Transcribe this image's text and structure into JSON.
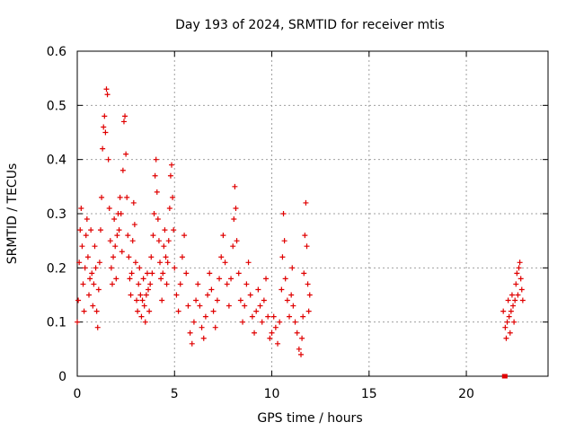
{
  "chart_data": {
    "type": "scatter",
    "title": "Day 193 of 2024, SRMTID for receiver mtis",
    "xlabel": "GPS time / hours",
    "ylabel": "SRMTID / TECUs",
    "xlim": [
      0,
      24.2
    ],
    "ylim": [
      0,
      0.6
    ],
    "x_ticks": [
      "0",
      "5",
      "10",
      "15",
      "20"
    ],
    "y_ticks": [
      "0",
      "0.1",
      "0.2",
      "0.3",
      "0.4",
      "0.5",
      "0.6"
    ],
    "grid": true,
    "marker": "+",
    "series_color": "#e00000",
    "series": [
      {
        "name": "SRMTID",
        "points": [
          [
            0.0,
            0.1
          ],
          [
            0.05,
            0.14
          ],
          [
            0.1,
            0.21
          ],
          [
            0.15,
            0.27
          ],
          [
            0.2,
            0.31
          ],
          [
            0.25,
            0.24
          ],
          [
            0.3,
            0.17
          ],
          [
            0.35,
            0.12
          ],
          [
            0.4,
            0.2
          ],
          [
            0.45,
            0.26
          ],
          [
            0.5,
            0.29
          ],
          [
            0.55,
            0.22
          ],
          [
            0.6,
            0.15
          ],
          [
            0.65,
            0.18
          ],
          [
            0.7,
            0.27
          ],
          [
            0.75,
            0.19
          ],
          [
            0.8,
            0.13
          ],
          [
            0.85,
            0.17
          ],
          [
            0.9,
            0.24
          ],
          [
            0.95,
            0.2
          ],
          [
            1.0,
            0.12
          ],
          [
            1.05,
            0.09
          ],
          [
            1.1,
            0.16
          ],
          [
            1.15,
            0.21
          ],
          [
            1.2,
            0.27
          ],
          [
            1.25,
            0.33
          ],
          [
            1.3,
            0.42
          ],
          [
            1.35,
            0.46
          ],
          [
            1.4,
            0.48
          ],
          [
            1.45,
            0.45
          ],
          [
            1.5,
            0.53
          ],
          [
            1.55,
            0.52
          ],
          [
            1.6,
            0.4
          ],
          [
            1.65,
            0.31
          ],
          [
            1.7,
            0.25
          ],
          [
            1.75,
            0.2
          ],
          [
            1.8,
            0.17
          ],
          [
            1.85,
            0.22
          ],
          [
            1.9,
            0.29
          ],
          [
            1.95,
            0.24
          ],
          [
            2.0,
            0.18
          ],
          [
            2.05,
            0.26
          ],
          [
            2.1,
            0.3
          ],
          [
            2.15,
            0.27
          ],
          [
            2.2,
            0.33
          ],
          [
            2.25,
            0.3
          ],
          [
            2.3,
            0.23
          ],
          [
            2.35,
            0.38
          ],
          [
            2.4,
            0.47
          ],
          [
            2.45,
            0.48
          ],
          [
            2.5,
            0.41
          ],
          [
            2.55,
            0.33
          ],
          [
            2.6,
            0.26
          ],
          [
            2.65,
            0.22
          ],
          [
            2.7,
            0.18
          ],
          [
            2.75,
            0.15
          ],
          [
            2.8,
            0.19
          ],
          [
            2.85,
            0.25
          ],
          [
            2.9,
            0.32
          ],
          [
            2.95,
            0.28
          ],
          [
            3.0,
            0.21
          ],
          [
            3.05,
            0.14
          ],
          [
            3.1,
            0.12
          ],
          [
            3.15,
            0.17
          ],
          [
            3.2,
            0.2
          ],
          [
            3.25,
            0.15
          ],
          [
            3.3,
            0.11
          ],
          [
            3.35,
            0.14
          ],
          [
            3.4,
            0.18
          ],
          [
            3.45,
            0.13
          ],
          [
            3.5,
            0.1
          ],
          [
            3.55,
            0.15
          ],
          [
            3.6,
            0.19
          ],
          [
            3.65,
            0.16
          ],
          [
            3.7,
            0.12
          ],
          [
            3.75,
            0.17
          ],
          [
            3.8,
            0.22
          ],
          [
            3.85,
            0.19
          ],
          [
            3.9,
            0.26
          ],
          [
            3.95,
            0.3
          ],
          [
            4.0,
            0.37
          ],
          [
            4.05,
            0.4
          ],
          [
            4.1,
            0.34
          ],
          [
            4.15,
            0.29
          ],
          [
            4.2,
            0.25
          ],
          [
            4.25,
            0.21
          ],
          [
            4.3,
            0.18
          ],
          [
            4.35,
            0.14
          ],
          [
            4.4,
            0.19
          ],
          [
            4.45,
            0.24
          ],
          [
            4.5,
            0.27
          ],
          [
            4.55,
            0.22
          ],
          [
            4.6,
            0.17
          ],
          [
            4.65,
            0.21
          ],
          [
            4.7,
            0.25
          ],
          [
            4.75,
            0.31
          ],
          [
            4.8,
            0.37
          ],
          [
            4.85,
            0.39
          ],
          [
            4.9,
            0.33
          ],
          [
            4.95,
            0.27
          ],
          [
            5.0,
            0.2
          ],
          [
            5.1,
            0.15
          ],
          [
            5.2,
            0.12
          ],
          [
            5.3,
            0.17
          ],
          [
            5.4,
            0.22
          ],
          [
            5.5,
            0.26
          ],
          [
            5.6,
            0.19
          ],
          [
            5.7,
            0.13
          ],
          [
            5.8,
            0.08
          ],
          [
            5.9,
            0.06
          ],
          [
            6.0,
            0.1
          ],
          [
            6.1,
            0.14
          ],
          [
            6.2,
            0.17
          ],
          [
            6.3,
            0.13
          ],
          [
            6.4,
            0.09
          ],
          [
            6.5,
            0.07
          ],
          [
            6.6,
            0.11
          ],
          [
            6.7,
            0.15
          ],
          [
            6.8,
            0.19
          ],
          [
            6.9,
            0.16
          ],
          [
            7.0,
            0.12
          ],
          [
            7.1,
            0.09
          ],
          [
            7.2,
            0.14
          ],
          [
            7.3,
            0.18
          ],
          [
            7.4,
            0.22
          ],
          [
            7.5,
            0.26
          ],
          [
            7.6,
            0.21
          ],
          [
            7.7,
            0.17
          ],
          [
            7.8,
            0.13
          ],
          [
            7.9,
            0.18
          ],
          [
            8.0,
            0.24
          ],
          [
            8.05,
            0.29
          ],
          [
            8.1,
            0.35
          ],
          [
            8.15,
            0.31
          ],
          [
            8.2,
            0.25
          ],
          [
            8.3,
            0.19
          ],
          [
            8.4,
            0.14
          ],
          [
            8.5,
            0.1
          ],
          [
            8.6,
            0.13
          ],
          [
            8.7,
            0.17
          ],
          [
            8.8,
            0.21
          ],
          [
            8.9,
            0.15
          ],
          [
            9.0,
            0.11
          ],
          [
            9.1,
            0.08
          ],
          [
            9.2,
            0.12
          ],
          [
            9.3,
            0.16
          ],
          [
            9.4,
            0.13
          ],
          [
            9.5,
            0.1
          ],
          [
            9.6,
            0.14
          ],
          [
            9.7,
            0.18
          ],
          [
            9.8,
            0.11
          ],
          [
            9.9,
            0.07
          ],
          [
            10.0,
            0.08
          ],
          [
            10.1,
            0.11
          ],
          [
            10.2,
            0.09
          ],
          [
            10.3,
            0.06
          ],
          [
            10.4,
            0.1
          ],
          [
            10.5,
            0.16
          ],
          [
            10.55,
            0.22
          ],
          [
            10.6,
            0.3
          ],
          [
            10.65,
            0.25
          ],
          [
            10.7,
            0.18
          ],
          [
            10.8,
            0.14
          ],
          [
            10.9,
            0.11
          ],
          [
            11.0,
            0.15
          ],
          [
            11.05,
            0.2
          ],
          [
            11.1,
            0.13
          ],
          [
            11.2,
            0.1
          ],
          [
            11.3,
            0.08
          ],
          [
            11.4,
            0.05
          ],
          [
            11.5,
            0.04
          ],
          [
            11.55,
            0.07
          ],
          [
            11.6,
            0.11
          ],
          [
            11.65,
            0.19
          ],
          [
            11.7,
            0.26
          ],
          [
            11.75,
            0.32
          ],
          [
            11.8,
            0.24
          ],
          [
            11.85,
            0.17
          ],
          [
            11.9,
            0.12
          ],
          [
            11.95,
            0.15
          ],
          [
            21.9,
            0.12
          ],
          [
            22.0,
            0.09
          ],
          [
            22.05,
            0.07
          ],
          [
            22.1,
            0.1
          ],
          [
            22.15,
            0.14
          ],
          [
            22.2,
            0.11
          ],
          [
            22.25,
            0.08
          ],
          [
            22.3,
            0.12
          ],
          [
            22.35,
            0.15
          ],
          [
            22.4,
            0.13
          ],
          [
            22.45,
            0.1
          ],
          [
            22.5,
            0.14
          ],
          [
            22.55,
            0.17
          ],
          [
            22.6,
            0.19
          ],
          [
            22.65,
            0.15
          ],
          [
            22.7,
            0.2
          ],
          [
            22.75,
            0.21
          ],
          [
            22.8,
            0.18
          ],
          [
            22.85,
            0.16
          ],
          [
            22.9,
            0.14
          ]
        ]
      }
    ],
    "zero_markers": [
      [
        21.95,
        0.0
      ],
      [
        22.0,
        0.0
      ]
    ]
  }
}
